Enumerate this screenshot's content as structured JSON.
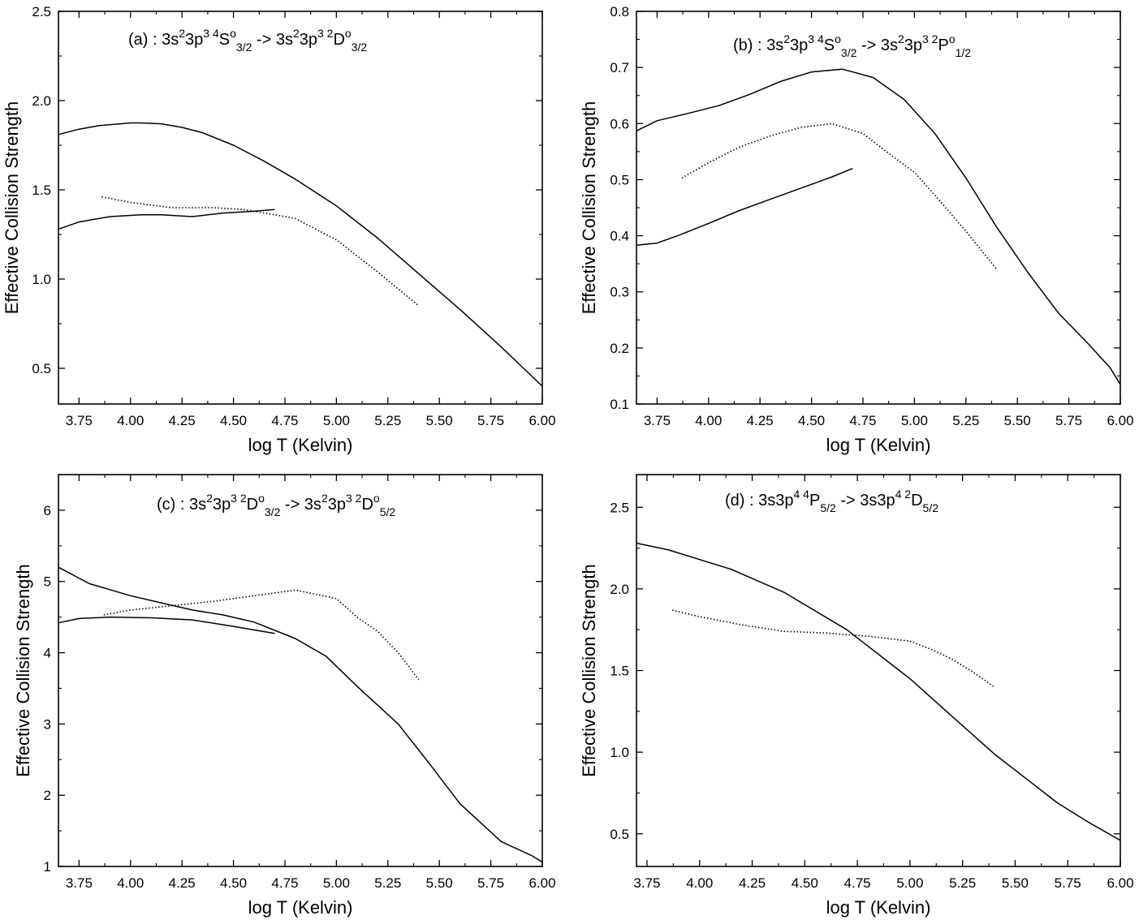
{
  "chart_data": [
    {
      "id": "a",
      "type": "line",
      "title": {
        "prefix": "(a) : ",
        "lower": {
          "base": "3s",
          "sup1": "2",
          "mid": "3p",
          "sup2": "3 4",
          "term": "S",
          "sup3": "o",
          "sub": "3/2"
        },
        "arrow": " -> ",
        "upper": {
          "base": "3s",
          "sup1": "2",
          "mid": "3p",
          "sup2": "3 2",
          "term": "D",
          "sup3": "o",
          "sub": "3/2"
        }
      },
      "xlabel": "log T (Kelvin)",
      "ylabel": "Effective Collision Strength",
      "xlim": [
        3.65,
        6.0
      ],
      "ylim": [
        0.3,
        2.5
      ],
      "xticks": [
        3.75,
        4.0,
        4.25,
        4.5,
        4.75,
        5.0,
        5.25,
        5.5,
        5.75,
        6.0
      ],
      "xtick_labels": [
        "3.75",
        "4.00",
        "4.25",
        "4.50",
        "4.75",
        "5.00",
        "5.25",
        "5.50",
        "5.75",
        "6.00"
      ],
      "yticks": [
        0.5,
        1.0,
        1.5,
        2.0,
        2.5
      ],
      "ytick_labels": [
        "0.5",
        "1.0",
        "1.5",
        "2.0",
        "2.5"
      ],
      "series": [
        {
          "name": "solid-upper",
          "style": "solid",
          "x": [
            3.65,
            3.75,
            3.85,
            3.95,
            4.0,
            4.05,
            4.15,
            4.25,
            4.35,
            4.5,
            4.65,
            4.8,
            5.0,
            5.2,
            5.4,
            5.6,
            5.8,
            6.0
          ],
          "y": [
            1.81,
            1.84,
            1.86,
            1.87,
            1.875,
            1.875,
            1.87,
            1.85,
            1.82,
            1.75,
            1.66,
            1.56,
            1.41,
            1.23,
            1.03,
            0.83,
            0.62,
            0.4
          ]
        },
        {
          "name": "dotted",
          "style": "dotted",
          "x": [
            3.86,
            4.0,
            4.2,
            4.4,
            4.55,
            4.8,
            5.0,
            5.2,
            5.4
          ],
          "y": [
            1.46,
            1.43,
            1.4,
            1.4,
            1.39,
            1.34,
            1.22,
            1.04,
            0.85
          ]
        },
        {
          "name": "solid-lower",
          "style": "solid",
          "x": [
            3.65,
            3.75,
            3.9,
            4.05,
            4.15,
            4.3,
            4.45,
            4.6,
            4.7
          ],
          "y": [
            1.28,
            1.32,
            1.35,
            1.36,
            1.36,
            1.35,
            1.37,
            1.38,
            1.39
          ]
        }
      ]
    },
    {
      "id": "b",
      "type": "line",
      "title": {
        "prefix": "(b) : ",
        "lower": {
          "base": "3s",
          "sup1": "2",
          "mid": "3p",
          "sup2": "3 4",
          "term": "S",
          "sup3": "o",
          "sub": "3/2"
        },
        "arrow": " -> ",
        "upper": {
          "base": "3s",
          "sup1": "2",
          "mid": "3p",
          "sup2": "3 2",
          "term": "P",
          "sup3": "o",
          "sub": "1/2"
        }
      },
      "xlabel": "log T (Kelvin)",
      "ylabel": "Effective Collision Strength",
      "xlim": [
        3.65,
        6.0
      ],
      "ylim": [
        0.1,
        0.8
      ],
      "xticks": [
        3.75,
        4.0,
        4.25,
        4.5,
        4.75,
        5.0,
        5.25,
        5.5,
        5.75,
        6.0
      ],
      "xtick_labels": [
        "3.75",
        "4.00",
        "4.25",
        "4.50",
        "4.75",
        "5.00",
        "5.25",
        "5.50",
        "5.75",
        "6.00"
      ],
      "yticks": [
        0.1,
        0.2,
        0.3,
        0.4,
        0.5,
        0.6,
        0.7,
        0.8
      ],
      "ytick_labels": [
        "0.1",
        "0.2",
        "0.3",
        "0.4",
        "0.5",
        "0.6",
        "0.7",
        "0.8"
      ],
      "series": [
        {
          "name": "solid-upper",
          "style": "solid",
          "x": [
            3.65,
            3.75,
            3.9,
            4.05,
            4.2,
            4.35,
            4.5,
            4.65,
            4.8,
            4.95,
            5.1,
            5.25,
            5.4,
            5.55,
            5.7,
            5.85,
            5.95,
            6.0
          ],
          "y": [
            0.587,
            0.605,
            0.618,
            0.632,
            0.652,
            0.675,
            0.692,
            0.697,
            0.682,
            0.643,
            0.582,
            0.503,
            0.415,
            0.335,
            0.262,
            0.205,
            0.165,
            0.135
          ]
        },
        {
          "name": "dotted",
          "style": "dotted",
          "x": [
            3.87,
            4.0,
            4.15,
            4.3,
            4.45,
            4.6,
            4.75,
            4.9,
            5.0,
            5.1,
            5.25,
            5.4
          ],
          "y": [
            0.503,
            0.53,
            0.558,
            0.578,
            0.593,
            0.6,
            0.582,
            0.54,
            0.513,
            0.472,
            0.408,
            0.34
          ]
        },
        {
          "name": "solid-lower",
          "style": "solid",
          "x": [
            3.65,
            3.75,
            3.85,
            4.0,
            4.15,
            4.3,
            4.45,
            4.6,
            4.7
          ],
          "y": [
            0.383,
            0.387,
            0.4,
            0.422,
            0.445,
            0.465,
            0.485,
            0.505,
            0.52
          ]
        }
      ]
    },
    {
      "id": "c",
      "type": "line",
      "title": {
        "prefix": "(c) : ",
        "lower": {
          "base": "3s",
          "sup1": "2",
          "mid": "3p",
          "sup2": "3 2",
          "term": "D",
          "sup3": "o",
          "sub": "3/2"
        },
        "arrow": " -> ",
        "upper": {
          "base": "3s",
          "sup1": "2",
          "mid": "3p",
          "sup2": "3 2",
          "term": "D",
          "sup3": "o",
          "sub": "5/2"
        }
      },
      "xlabel": "log T (Kelvin)",
      "ylabel": "Effective Collision Strength",
      "xlim": [
        3.65,
        6.0
      ],
      "ylim": [
        1.0,
        6.5
      ],
      "xticks": [
        3.75,
        4.0,
        4.25,
        4.5,
        4.75,
        5.0,
        5.25,
        5.5,
        5.75,
        6.0
      ],
      "xtick_labels": [
        "3.75",
        "4.00",
        "4.25",
        "4.50",
        "4.75",
        "5.00",
        "5.25",
        "5.50",
        "5.75",
        "6.00"
      ],
      "yticks": [
        1,
        2,
        3,
        4,
        5,
        6
      ],
      "ytick_labels": [
        "1",
        "2",
        "3",
        "4",
        "5",
        "6"
      ],
      "series": [
        {
          "name": "solid-upper",
          "style": "solid",
          "x": [
            3.65,
            3.8,
            4.0,
            4.15,
            4.3,
            4.45,
            4.6,
            4.8,
            4.95,
            5.1,
            5.3,
            5.45,
            5.6,
            5.8,
            5.95,
            6.0
          ],
          "y": [
            5.2,
            4.97,
            4.8,
            4.7,
            4.6,
            4.53,
            4.43,
            4.2,
            3.95,
            3.53,
            3.0,
            2.45,
            1.88,
            1.35,
            1.15,
            1.06
          ]
        },
        {
          "name": "dotted",
          "style": "dotted",
          "x": [
            3.87,
            4.0,
            4.2,
            4.4,
            4.6,
            4.8,
            5.0,
            5.1,
            5.2,
            5.3,
            5.4
          ],
          "y": [
            4.53,
            4.6,
            4.66,
            4.72,
            4.8,
            4.88,
            4.76,
            4.5,
            4.3,
            4.0,
            3.62
          ]
        },
        {
          "name": "solid-lower",
          "style": "solid",
          "x": [
            3.65,
            3.75,
            3.9,
            4.1,
            4.3,
            4.5,
            4.7
          ],
          "y": [
            4.42,
            4.48,
            4.5,
            4.49,
            4.46,
            4.37,
            4.27
          ]
        }
      ]
    },
    {
      "id": "d",
      "type": "line",
      "title": {
        "prefix": "(d) : ",
        "lower": {
          "base": "3s3p",
          "sup1": "",
          "mid": "",
          "sup2": "4 4",
          "term": "P",
          "sup3": "",
          "sub": "5/2"
        },
        "arrow": " -> ",
        "upper": {
          "base": "3s3p",
          "sup1": "",
          "mid": "",
          "sup2": "4 2",
          "term": "D",
          "sup3": "",
          "sub": "5/2"
        }
      },
      "xlabel": "log T (Kelvin)",
      "ylabel": "Effective Collision Strength",
      "xlim": [
        3.7,
        6.0
      ],
      "ylim": [
        0.3,
        2.7
      ],
      "xticks": [
        3.75,
        4.0,
        4.25,
        4.5,
        4.75,
        5.0,
        5.25,
        5.5,
        5.75,
        6.0
      ],
      "xtick_labels": [
        "3.75",
        "4.00",
        "4.25",
        "4.50",
        "4.75",
        "5.00",
        "5.25",
        "5.50",
        "5.75",
        "6.00"
      ],
      "yticks": [
        0.5,
        1.0,
        1.5,
        2.0,
        2.5
      ],
      "ytick_labels": [
        "0.5",
        "1.0",
        "1.5",
        "2.0",
        "2.5"
      ],
      "series": [
        {
          "name": "solid",
          "style": "solid",
          "x": [
            3.7,
            3.85,
            4.0,
            4.15,
            4.4,
            4.7,
            5.0,
            5.2,
            5.4,
            5.55,
            5.7,
            5.85,
            6.0
          ],
          "y": [
            2.28,
            2.24,
            2.18,
            2.12,
            1.98,
            1.75,
            1.45,
            1.22,
            0.99,
            0.84,
            0.69,
            0.57,
            0.46
          ]
        },
        {
          "name": "dotted",
          "style": "dotted",
          "x": [
            3.87,
            4.0,
            4.2,
            4.4,
            4.6,
            4.8,
            5.0,
            5.1,
            5.2,
            5.3,
            5.4
          ],
          "y": [
            1.87,
            1.83,
            1.78,
            1.74,
            1.73,
            1.71,
            1.68,
            1.63,
            1.57,
            1.49,
            1.4
          ]
        }
      ]
    }
  ]
}
